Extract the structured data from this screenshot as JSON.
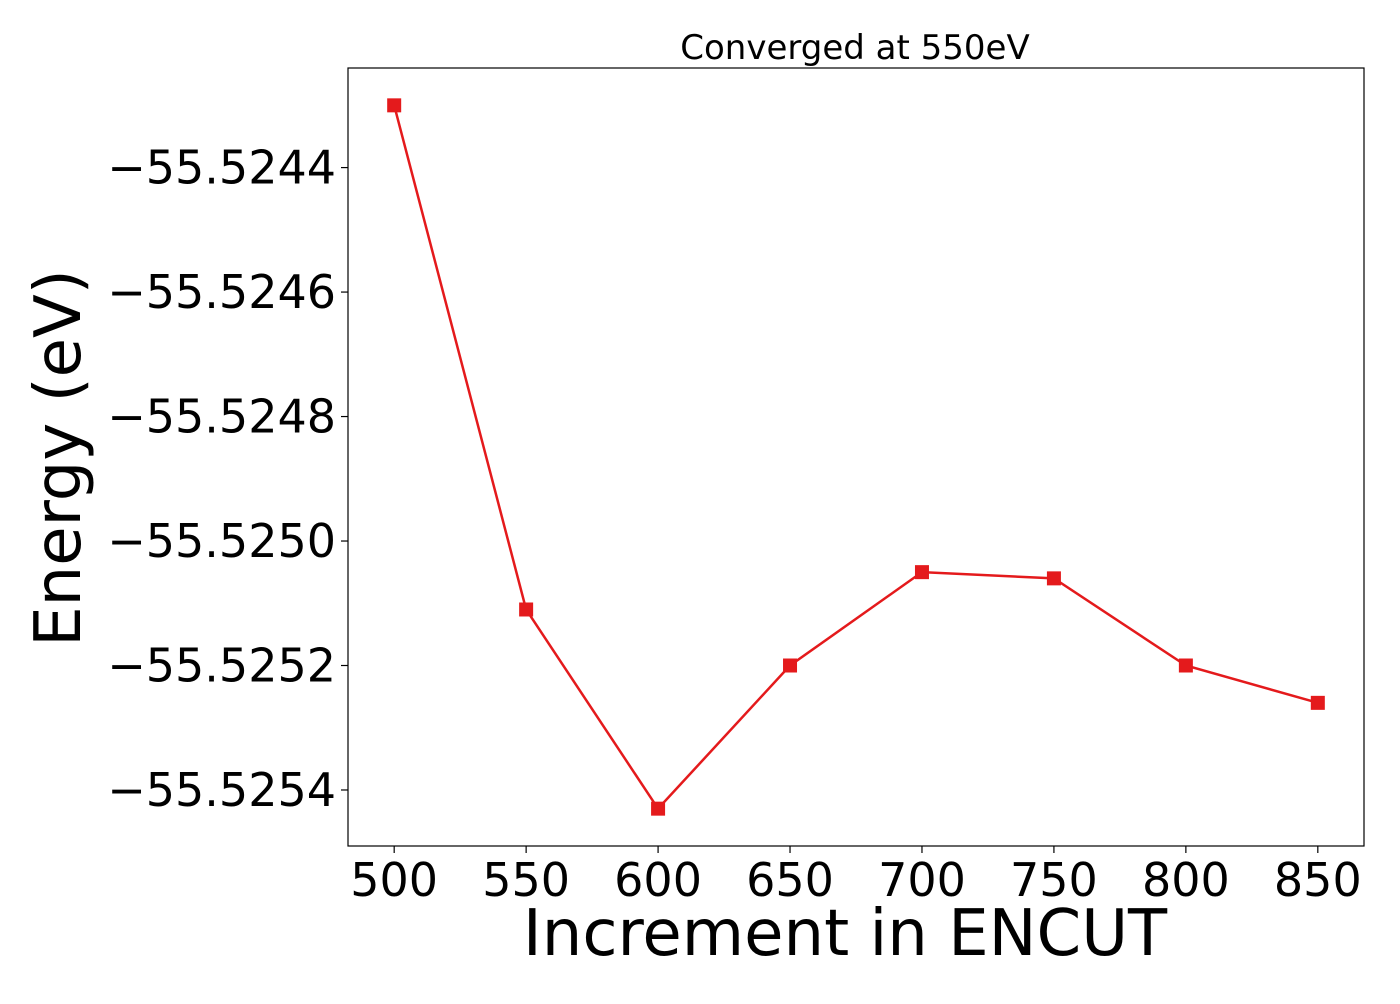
{
  "chart_data": {
    "type": "line",
    "title": "Converged at 550eV",
    "xlabel": "Increment in ENCUT",
    "ylabel": "Energy (eV)",
    "x": [
      500,
      550,
      600,
      650,
      700,
      750,
      800,
      850
    ],
    "series": [
      {
        "values": [
          -55.5243,
          -55.52511,
          -55.52543,
          -55.5252,
          -55.52505,
          -55.52506,
          -55.5252,
          -55.52526
        ],
        "color": "#e41a1c",
        "marker": "square"
      }
    ],
    "xlim": [
      482.5,
      867.5
    ],
    "ylim": [
      -55.52549,
      -55.52424
    ],
    "xticks": [
      500,
      550,
      600,
      650,
      700,
      750,
      800,
      850
    ],
    "xtick_labels": [
      "500",
      "550",
      "600",
      "650",
      "700",
      "750",
      "800",
      "850"
    ],
    "yticks": [
      -55.5244,
      -55.5246,
      -55.5248,
      -55.525,
      -55.5252,
      -55.5254
    ],
    "ytick_labels": [
      "−55.5244",
      "−55.5246",
      "−55.5248",
      "−55.5250",
      "−55.5252",
      "−55.5254"
    ],
    "grid": false,
    "legend": "none"
  }
}
